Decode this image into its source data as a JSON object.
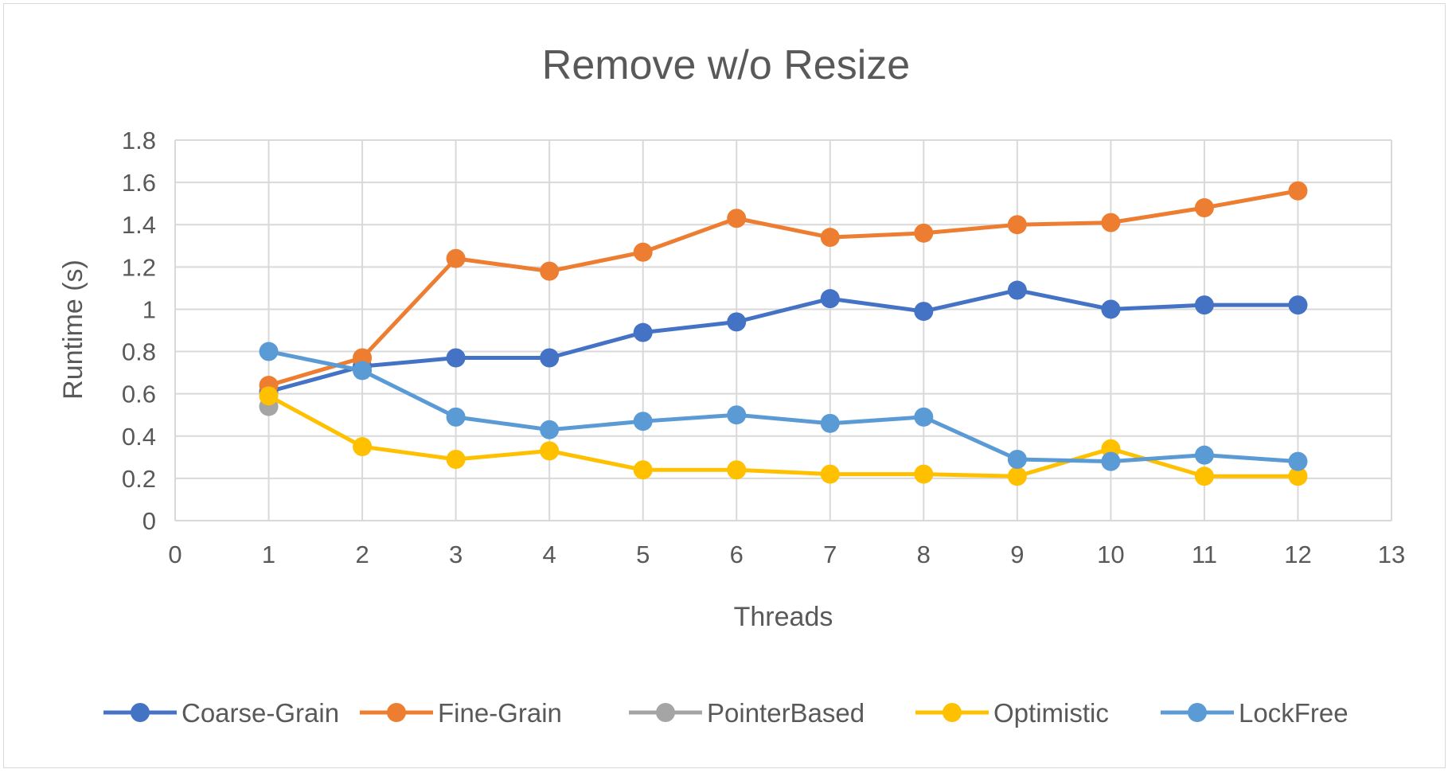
{
  "chart_data": {
    "type": "line",
    "title": "Remove w/o Resize",
    "xlabel": "Threads",
    "ylabel": "Runtime (s)",
    "xlim": [
      0,
      13
    ],
    "ylim": [
      0,
      1.8
    ],
    "x_ticks": [
      "0",
      "1",
      "2",
      "3",
      "4",
      "5",
      "6",
      "7",
      "8",
      "9",
      "10",
      "11",
      "12",
      "13"
    ],
    "y_ticks": [
      "0",
      "0.2",
      "0.4",
      "0.6",
      "0.8",
      "1",
      "1.2",
      "1.4",
      "1.6",
      "1.8"
    ],
    "grid": true,
    "legend_position": "bottom",
    "series": [
      {
        "name": "Coarse-Grain",
        "color": "#4472c4",
        "x": [
          1,
          2,
          3,
          4,
          5,
          6,
          7,
          8,
          9,
          10,
          11,
          12
        ],
        "values": [
          0.61,
          0.73,
          0.77,
          0.77,
          0.89,
          0.94,
          1.05,
          0.99,
          1.09,
          1.0,
          1.02,
          1.02
        ]
      },
      {
        "name": "Fine-Grain",
        "color": "#ed7d31",
        "x": [
          1,
          2,
          3,
          4,
          5,
          6,
          7,
          8,
          9,
          10,
          11,
          12
        ],
        "values": [
          0.64,
          0.77,
          1.24,
          1.18,
          1.27,
          1.43,
          1.34,
          1.36,
          1.4,
          1.41,
          1.48,
          1.56
        ]
      },
      {
        "name": "PointerBased",
        "color": "#a5a5a5",
        "x": [
          1
        ],
        "values": [
          0.54
        ]
      },
      {
        "name": "Optimistic",
        "color": "#ffc000",
        "x": [
          1,
          2,
          3,
          4,
          5,
          6,
          7,
          8,
          9,
          10,
          11,
          12
        ],
        "values": [
          0.59,
          0.35,
          0.29,
          0.33,
          0.24,
          0.24,
          0.22,
          0.22,
          0.21,
          0.34,
          0.21,
          0.21
        ]
      },
      {
        "name": "LockFree",
        "color": "#5b9bd5",
        "x": [
          1,
          2,
          3,
          4,
          5,
          6,
          7,
          8,
          9,
          10,
          11,
          12
        ],
        "values": [
          0.8,
          0.71,
          0.49,
          0.43,
          0.47,
          0.5,
          0.46,
          0.49,
          0.29,
          0.28,
          0.31,
          0.28
        ]
      }
    ]
  }
}
